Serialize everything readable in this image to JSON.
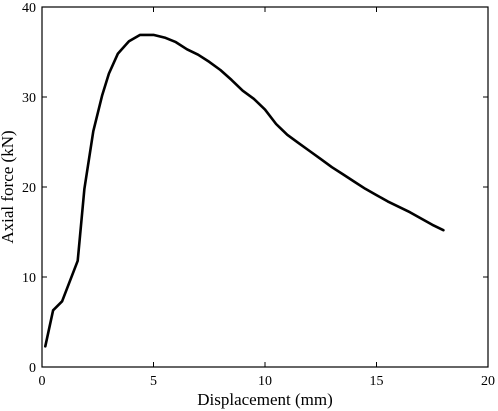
{
  "chart_data": {
    "type": "line",
    "title": "",
    "xlabel": "Displacement (mm)",
    "ylabel": "Axial force (kN)",
    "xlim": [
      0,
      20
    ],
    "ylim": [
      0,
      40
    ],
    "x_ticks": [
      "0",
      "5",
      "10",
      "15",
      "20"
    ],
    "y_ticks": [
      "0",
      "10",
      "20",
      "30",
      "40"
    ],
    "grid": false,
    "legend": "none",
    "line_color": "#000000",
    "series": [
      {
        "x": [
          0.15,
          0.5,
          0.9,
          1.6,
          1.9,
          2.3,
          2.7,
          3.0,
          3.4,
          3.9,
          4.4,
          5.0,
          5.5,
          6.0,
          6.5,
          7.0,
          7.5,
          8.0,
          8.5,
          9.0,
          9.5,
          10.0,
          10.5,
          11.0,
          11.5,
          12.0,
          12.5,
          13.0,
          13.5,
          14.0,
          14.5,
          15.0,
          15.5,
          16.0,
          16.5,
          17.0,
          17.5,
          18.0
        ],
        "y": [
          2.3,
          6.3,
          7.3,
          11.8,
          19.8,
          26.2,
          30.2,
          32.6,
          34.8,
          36.2,
          36.9,
          36.9,
          36.6,
          36.1,
          35.3,
          34.7,
          33.9,
          33.0,
          31.9,
          30.7,
          29.8,
          28.6,
          27.0,
          25.8,
          24.9,
          24.0,
          23.1,
          22.2,
          21.4,
          20.6,
          19.8,
          19.1,
          18.4,
          17.8,
          17.2,
          16.5,
          15.8,
          15.2
        ]
      }
    ]
  }
}
